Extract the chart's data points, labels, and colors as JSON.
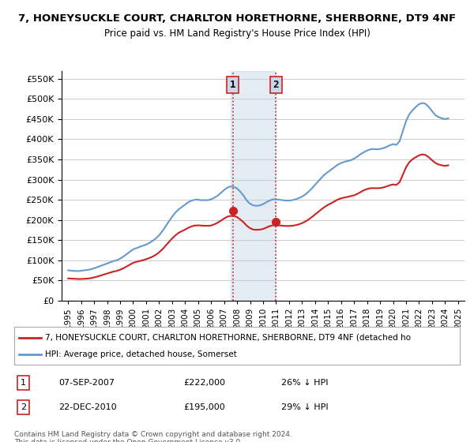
{
  "title": "7, HONEYSUCKLE COURT, CHARLTON HORETHORNE, SHERBORNE, DT9 4NF",
  "subtitle": "Price paid vs. HM Land Registry's House Price Index (HPI)",
  "ylabel_ticks": [
    "£0",
    "£50K",
    "£100K",
    "£150K",
    "£200K",
    "£250K",
    "£300K",
    "£350K",
    "£400K",
    "£450K",
    "£500K",
    "£550K"
  ],
  "ytick_values": [
    0,
    50000,
    100000,
    150000,
    200000,
    250000,
    300000,
    350000,
    400000,
    450000,
    500000,
    550000
  ],
  "ylim": [
    0,
    570000
  ],
  "hpi_color": "#6699cc",
  "price_color": "#cc2222",
  "purchase1": {
    "date": "07-SEP-2007",
    "price": 222000,
    "label": "1",
    "hpi_diff": "26% ↓ HPI"
  },
  "purchase2": {
    "date": "22-DEC-2010",
    "price": 195000,
    "label": "2",
    "hpi_diff": "29% ↓ HPI"
  },
  "purchase1_x": 2007.69,
  "purchase2_x": 2010.98,
  "legend_label1": "7, HONEYSUCKLE COURT, CHARLTON HORETHORNE, SHERBORNE, DT9 4NF (detached ho",
  "legend_label2": "HPI: Average price, detached house, Somerset",
  "footnote": "Contains HM Land Registry data © Crown copyright and database right 2024.\nThis data is licensed under the Open Government Licence v3.0.",
  "hpi_data_x": [
    1995.0,
    1995.25,
    1995.5,
    1995.75,
    1996.0,
    1996.25,
    1996.5,
    1996.75,
    1997.0,
    1997.25,
    1997.5,
    1997.75,
    1998.0,
    1998.25,
    1998.5,
    1998.75,
    1999.0,
    1999.25,
    1999.5,
    1999.75,
    2000.0,
    2000.25,
    2000.5,
    2000.75,
    2001.0,
    2001.25,
    2001.5,
    2001.75,
    2002.0,
    2002.25,
    2002.5,
    2002.75,
    2003.0,
    2003.25,
    2003.5,
    2003.75,
    2004.0,
    2004.25,
    2004.5,
    2004.75,
    2005.0,
    2005.25,
    2005.5,
    2005.75,
    2006.0,
    2006.25,
    2006.5,
    2006.75,
    2007.0,
    2007.25,
    2007.5,
    2007.75,
    2008.0,
    2008.25,
    2008.5,
    2008.75,
    2009.0,
    2009.25,
    2009.5,
    2009.75,
    2010.0,
    2010.25,
    2010.5,
    2010.75,
    2011.0,
    2011.25,
    2011.5,
    2011.75,
    2012.0,
    2012.25,
    2012.5,
    2012.75,
    2013.0,
    2013.25,
    2013.5,
    2013.75,
    2014.0,
    2014.25,
    2014.5,
    2014.75,
    2015.0,
    2015.25,
    2015.5,
    2015.75,
    2016.0,
    2016.25,
    2016.5,
    2016.75,
    2017.0,
    2017.25,
    2017.5,
    2017.75,
    2018.0,
    2018.25,
    2018.5,
    2018.75,
    2019.0,
    2019.25,
    2019.5,
    2019.75,
    2020.0,
    2020.25,
    2020.5,
    2020.75,
    2021.0,
    2021.25,
    2021.5,
    2021.75,
    2022.0,
    2022.25,
    2022.5,
    2022.75,
    2023.0,
    2023.25,
    2023.5,
    2023.75,
    2024.0,
    2024.25
  ],
  "hpi_data_y": [
    75000,
    74000,
    73500,
    73000,
    74000,
    75000,
    76000,
    77500,
    80000,
    83000,
    86000,
    89000,
    92000,
    95000,
    98000,
    100000,
    104000,
    109000,
    115000,
    121000,
    127000,
    130000,
    133000,
    136000,
    139000,
    143000,
    148000,
    154000,
    162000,
    172000,
    184000,
    196000,
    208000,
    218000,
    226000,
    232000,
    238000,
    244000,
    248000,
    250000,
    250000,
    249000,
    249000,
    249000,
    251000,
    255000,
    260000,
    267000,
    274000,
    280000,
    283000,
    282000,
    278000,
    270000,
    260000,
    248000,
    240000,
    236000,
    235000,
    236000,
    239000,
    244000,
    248000,
    251000,
    251000,
    250000,
    249000,
    248000,
    248000,
    249000,
    251000,
    254000,
    258000,
    263000,
    270000,
    278000,
    287000,
    296000,
    305000,
    313000,
    319000,
    325000,
    331000,
    337000,
    341000,
    344000,
    346000,
    348000,
    352000,
    357000,
    363000,
    368000,
    372000,
    375000,
    376000,
    375000,
    376000,
    378000,
    381000,
    385000,
    388000,
    386000,
    395000,
    420000,
    445000,
    462000,
    472000,
    480000,
    487000,
    490000,
    488000,
    480000,
    470000,
    460000,
    455000,
    452000,
    450000,
    452000
  ],
  "price_data_x": [
    1995.0,
    1995.25,
    1995.5,
    1995.75,
    1996.0,
    1996.25,
    1996.5,
    1996.75,
    1997.0,
    1997.25,
    1997.5,
    1997.75,
    1998.0,
    1998.25,
    1998.5,
    1998.75,
    1999.0,
    1999.25,
    1999.5,
    1999.75,
    2000.0,
    2000.25,
    2000.5,
    2000.75,
    2001.0,
    2001.25,
    2001.5,
    2001.75,
    2002.0,
    2002.25,
    2002.5,
    2002.75,
    2003.0,
    2003.25,
    2003.5,
    2003.75,
    2004.0,
    2004.25,
    2004.5,
    2004.75,
    2005.0,
    2005.25,
    2005.5,
    2005.75,
    2006.0,
    2006.25,
    2006.5,
    2006.75,
    2007.0,
    2007.25,
    2007.5,
    2007.75,
    2008.0,
    2008.25,
    2008.5,
    2008.75,
    2009.0,
    2009.25,
    2009.5,
    2009.75,
    2010.0,
    2010.25,
    2010.5,
    2010.75,
    2011.0,
    2011.25,
    2011.5,
    2011.75,
    2012.0,
    2012.25,
    2012.5,
    2012.75,
    2013.0,
    2013.25,
    2013.5,
    2013.75,
    2014.0,
    2014.25,
    2014.5,
    2014.75,
    2015.0,
    2015.25,
    2015.5,
    2015.75,
    2016.0,
    2016.25,
    2016.5,
    2016.75,
    2017.0,
    2017.25,
    2017.5,
    2017.75,
    2018.0,
    2018.25,
    2018.5,
    2018.75,
    2019.0,
    2019.25,
    2019.5,
    2019.75,
    2020.0,
    2020.25,
    2020.5,
    2020.75,
    2021.0,
    2021.25,
    2021.5,
    2021.75,
    2022.0,
    2022.25,
    2022.5,
    2022.75,
    2023.0,
    2023.25,
    2023.5,
    2023.75,
    2024.0,
    2024.25
  ],
  "price_data_y": [
    55000,
    54500,
    54000,
    53500,
    53500,
    54000,
    54500,
    55500,
    57500,
    59500,
    62000,
    64500,
    67000,
    69500,
    72000,
    73500,
    76500,
    80000,
    84500,
    89000,
    93500,
    96000,
    98000,
    100000,
    102500,
    105500,
    109000,
    113500,
    119500,
    127000,
    136000,
    145000,
    154000,
    161500,
    168000,
    172000,
    176000,
    180500,
    184000,
    186000,
    186500,
    186000,
    185500,
    185500,
    186000,
    189000,
    193000,
    198000,
    203500,
    208000,
    210000,
    210000,
    207000,
    201000,
    194000,
    185500,
    179500,
    176000,
    175500,
    176000,
    177500,
    181000,
    184500,
    186500,
    187000,
    186500,
    185500,
    185000,
    185000,
    185500,
    187000,
    189000,
    192000,
    196000,
    201000,
    207000,
    213500,
    220000,
    226500,
    232500,
    237500,
    241500,
    246000,
    250500,
    253500,
    255500,
    257000,
    259000,
    261000,
    264500,
    269000,
    273500,
    276500,
    278500,
    279000,
    278500,
    279000,
    280500,
    283000,
    286000,
    288000,
    286500,
    293500,
    311500,
    330500,
    343000,
    350500,
    355500,
    360000,
    362500,
    361000,
    355500,
    348000,
    341500,
    337500,
    335500,
    334000,
    335500
  ],
  "xlim": [
    1994.5,
    2025.5
  ],
  "xtick_years": [
    1995,
    1996,
    1997,
    1998,
    1999,
    2000,
    2001,
    2002,
    2003,
    2004,
    2005,
    2006,
    2007,
    2008,
    2009,
    2010,
    2011,
    2012,
    2013,
    2014,
    2015,
    2016,
    2017,
    2018,
    2019,
    2020,
    2021,
    2022,
    2023,
    2024,
    2025
  ],
  "shade_x1": 2007.5,
  "shade_x2": 2011.0,
  "bg_color": "#f0f4f8"
}
